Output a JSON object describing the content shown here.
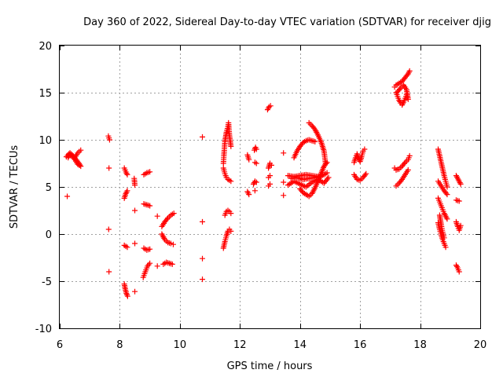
{
  "chart_data": {
    "type": "scatter",
    "title": "Day 360 of 2022, Sidereal Day-to-day VTEC variation (SDTVAR) for receiver djig",
    "xlabel": "GPS time / hours",
    "ylabel": "SDTVAR / TECUs",
    "xlim": [
      6,
      20
    ],
    "ylim": [
      -10,
      20
    ],
    "xticks": [
      "6",
      "8",
      "10",
      "12",
      "14",
      "16",
      "18",
      "20"
    ],
    "yticks": [
      "-10",
      "-5",
      "0",
      "5",
      "10",
      "15",
      "20"
    ],
    "grid": true,
    "legend": "none",
    "marker": "plus",
    "color": "#ff0000",
    "segments": [
      {
        "x": [
          6.22,
          6.3,
          6.4,
          6.5,
          6.6,
          6.7,
          6.62,
          6.52,
          6.42,
          6.34,
          6.28
        ],
        "y": [
          8.2,
          8.5,
          8.3,
          7.9,
          7.4,
          7.2,
          7.6,
          8.0,
          8.4,
          8.6,
          8.1
        ]
      },
      {
        "x": [
          6.5,
          6.6,
          6.7
        ],
        "y": [
          8.1,
          8.6,
          8.9
        ]
      },
      {
        "x": [
          6.25
        ],
        "y": [
          4.0
        ]
      },
      {
        "x": [
          7.62,
          7.66
        ],
        "y": [
          10.4,
          10.0
        ]
      },
      {
        "x": [
          7.64
        ],
        "y": [
          7.0
        ]
      },
      {
        "x": [
          7.63
        ],
        "y": [
          0.5
        ]
      },
      {
        "x": [
          7.64
        ],
        "y": [
          -4.0
        ]
      },
      {
        "x": [
          8.15,
          8.2,
          8.25
        ],
        "y": [
          7.0,
          6.6,
          6.3
        ]
      },
      {
        "x": [
          8.15,
          8.2,
          8.25
        ],
        "y": [
          3.8,
          4.3,
          4.6
        ]
      },
      {
        "x": [
          8.15,
          8.25
        ],
        "y": [
          -1.2,
          -1.4
        ]
      },
      {
        "x": [
          8.15,
          8.18,
          8.22,
          8.26
        ],
        "y": [
          -5.3,
          -5.8,
          -6.3,
          -6.6
        ]
      },
      {
        "x": [
          8.48,
          8.5
        ],
        "y": [
          5.9,
          5.2
        ]
      },
      {
        "x": [
          8.5
        ],
        "y": [
          2.5
        ]
      },
      {
        "x": [
          8.5
        ],
        "y": [
          -1.0
        ]
      },
      {
        "x": [
          8.5
        ],
        "y": [
          -6.1
        ]
      },
      {
        "x": [
          8.8,
          8.9,
          9.0
        ],
        "y": [
          6.3,
          6.5,
          6.6
        ]
      },
      {
        "x": [
          8.8,
          8.9,
          9.0
        ],
        "y": [
          3.2,
          3.1,
          3.0
        ]
      },
      {
        "x": [
          8.8,
          8.9,
          9.0
        ],
        "y": [
          -1.5,
          -1.7,
          -1.6
        ]
      },
      {
        "x": [
          8.78,
          8.85,
          8.92,
          9.0
        ],
        "y": [
          -4.6,
          -4.0,
          -3.4,
          -3.1
        ]
      },
      {
        "x": [
          9.25
        ],
        "y": [
          1.9
        ]
      },
      {
        "x": [
          9.25
        ],
        "y": [
          -3.4
        ]
      },
      {
        "x": [
          9.4,
          9.5,
          9.6,
          9.7,
          9.8
        ],
        "y": [
          0.8,
          1.3,
          1.7,
          2.0,
          2.2
        ]
      },
      {
        "x": [
          9.4,
          9.5,
          9.6,
          9.7,
          9.78
        ],
        "y": [
          0.0,
          -0.6,
          -0.9,
          -1.0,
          -1.1
        ]
      },
      {
        "x": [
          9.45,
          9.55,
          9.65,
          9.75
        ],
        "y": [
          -3.2,
          -3.0,
          -3.1,
          -3.2
        ]
      },
      {
        "x": [
          10.75
        ],
        "y": [
          10.3
        ]
      },
      {
        "x": [
          10.75
        ],
        "y": [
          1.3
        ]
      },
      {
        "x": [
          10.75
        ],
        "y": [
          -2.6
        ]
      },
      {
        "x": [
          10.75
        ],
        "y": [
          -4.8
        ]
      },
      {
        "x": [
          11.45,
          11.47,
          11.5,
          11.55,
          11.6,
          11.62,
          11.65,
          11.7
        ],
        "y": [
          7.5,
          8.5,
          9.8,
          10.8,
          11.4,
          11.8,
          10.5,
          9.3
        ]
      },
      {
        "x": [
          11.45,
          11.5,
          11.55,
          11.6,
          11.65,
          11.7
        ],
        "y": [
          7.0,
          6.4,
          6.0,
          5.8,
          5.7,
          5.6
        ]
      },
      {
        "x": [
          11.5,
          11.55,
          11.6,
          11.65,
          11.7
        ],
        "y": [
          2.0,
          2.4,
          2.5,
          2.4,
          2.2
        ]
      },
      {
        "x": [
          11.45,
          11.5,
          11.55,
          11.6,
          11.65,
          11.7
        ],
        "y": [
          -1.5,
          -0.8,
          -0.2,
          0.3,
          0.5,
          0.3
        ]
      },
      {
        "x": [
          12.25,
          12.3
        ],
        "y": [
          8.4,
          7.9
        ]
      },
      {
        "x": [
          12.25,
          12.3
        ],
        "y": [
          4.5,
          4.2
        ]
      },
      {
        "x": [
          12.48,
          12.52,
          12.55
        ],
        "y": [
          8.9,
          9.2,
          9.0
        ]
      },
      {
        "x": [
          12.5,
          12.55
        ],
        "y": [
          7.6,
          7.5
        ]
      },
      {
        "x": [
          12.45,
          12.5,
          12.55
        ],
        "y": [
          5.3,
          5.6,
          5.5
        ]
      },
      {
        "x": [
          12.5
        ],
        "y": [
          4.6
        ]
      },
      {
        "x": [
          12.92,
          12.97,
          13.02
        ],
        "y": [
          13.2,
          13.5,
          13.6
        ]
      },
      {
        "x": [
          12.95,
          13.0,
          13.05
        ],
        "y": [
          7.0,
          7.5,
          7.3
        ]
      },
      {
        "x": [
          12.95,
          13.0
        ],
        "y": [
          6.0,
          6.2
        ]
      },
      {
        "x": [
          12.95,
          13.0
        ],
        "y": [
          5.1,
          5.3
        ]
      },
      {
        "x": [
          13.45
        ],
        "y": [
          8.6
        ]
      },
      {
        "x": [
          13.45
        ],
        "y": [
          4.1
        ]
      },
      {
        "x": [
          13.45
        ],
        "y": [
          5.5
        ]
      },
      {
        "x": [
          13.8,
          13.9,
          14.0,
          14.1,
          14.2,
          14.3,
          14.4,
          14.5
        ],
        "y": [
          8.1,
          8.8,
          9.3,
          9.7,
          9.9,
          10.0,
          9.9,
          9.8
        ]
      },
      {
        "x": [
          14.3,
          14.4,
          14.5,
          14.6,
          14.7,
          14.8,
          14.85
        ],
        "y": [
          11.8,
          11.5,
          11.1,
          10.5,
          9.8,
          8.8,
          7.5
        ]
      },
      {
        "x": [
          13.6,
          13.8,
          14.0,
          14.2,
          14.4,
          14.6,
          14.8,
          14.9
        ],
        "y": [
          6.2,
          6.1,
          6.2,
          6.3,
          6.2,
          6.1,
          6.3,
          6.5
        ]
      },
      {
        "x": [
          13.6,
          13.8,
          14.0,
          14.2,
          14.4,
          14.6,
          14.8,
          14.95
        ],
        "y": [
          5.2,
          5.6,
          5.3,
          5.0,
          5.5,
          5.8,
          5.4,
          6.0
        ]
      },
      {
        "x": [
          14.0,
          14.1,
          14.2,
          14.3,
          14.4,
          14.5,
          14.6,
          14.7,
          14.8,
          14.9
        ],
        "y": [
          4.8,
          4.4,
          4.2,
          4.0,
          4.3,
          4.9,
          5.6,
          6.4,
          7.2,
          7.6
        ]
      },
      {
        "x": [
          13.7,
          13.9,
          14.1,
          14.3,
          14.5,
          14.7
        ],
        "y": [
          5.9,
          6.0,
          5.8,
          5.9,
          6.0,
          6.1
        ]
      },
      {
        "x": [
          15.8,
          15.85,
          15.9,
          15.95,
          16.0,
          16.05,
          16.1,
          16.15
        ],
        "y": [
          7.6,
          8.1,
          8.5,
          8.0,
          7.7,
          8.2,
          8.8,
          9.0
        ]
      },
      {
        "x": [
          15.8,
          15.9,
          16.0,
          16.1,
          16.2
        ],
        "y": [
          6.3,
          5.8,
          5.7,
          6.0,
          6.4
        ]
      },
      {
        "x": [
          17.15,
          17.2,
          17.25,
          17.3,
          17.4,
          17.5,
          17.6,
          17.65
        ],
        "y": [
          15.6,
          15.8,
          15.9,
          16.0,
          16.2,
          16.6,
          17.0,
          17.3
        ]
      },
      {
        "x": [
          17.2,
          17.25,
          17.3,
          17.35,
          17.4,
          17.45,
          17.5,
          17.55,
          17.6,
          17.55,
          17.45,
          17.35,
          17.25
        ],
        "y": [
          15.0,
          14.6,
          14.2,
          13.9,
          13.7,
          14.0,
          14.4,
          14.8,
          14.3,
          15.3,
          15.8,
          15.5,
          15.1
        ]
      },
      {
        "x": [
          17.15,
          17.2,
          17.3,
          17.4,
          17.5,
          17.6,
          17.65
        ],
        "y": [
          7.0,
          6.8,
          6.9,
          7.2,
          7.6,
          7.9,
          8.3
        ]
      },
      {
        "x": [
          17.2,
          17.3,
          17.4,
          17.5,
          17.6
        ],
        "y": [
          5.1,
          5.4,
          5.8,
          6.3,
          6.8
        ]
      },
      {
        "x": [
          18.6,
          18.65,
          18.7,
          18.75,
          18.8,
          18.85,
          18.9
        ],
        "y": [
          9.0,
          8.3,
          7.6,
          6.9,
          6.2,
          5.6,
          5.0
        ]
      },
      {
        "x": [
          18.6,
          18.7,
          18.8,
          18.9
        ],
        "y": [
          5.6,
          5.1,
          4.6,
          4.2
        ]
      },
      {
        "x": [
          18.6,
          18.65,
          18.7,
          18.75,
          18.8,
          18.85,
          18.9
        ],
        "y": [
          3.8,
          3.4,
          3.0,
          2.6,
          2.2,
          1.9,
          1.6
        ]
      },
      {
        "x": [
          18.6,
          18.65,
          18.7,
          18.75,
          18.8,
          18.85
        ],
        "y": [
          1.2,
          0.5,
          -0.1,
          -0.6,
          -1.0,
          -1.4
        ]
      },
      {
        "x": [
          18.65,
          18.7,
          18.75,
          18.8
        ],
        "y": [
          2.0,
          1.0,
          0.2,
          -0.4
        ]
      },
      {
        "x": [
          19.2,
          19.25,
          19.3,
          19.35
        ],
        "y": [
          6.2,
          5.9,
          5.6,
          5.3
        ]
      },
      {
        "x": [
          19.2,
          19.3
        ],
        "y": [
          3.6,
          3.5
        ]
      },
      {
        "x": [
          19.2,
          19.25,
          19.3,
          19.35
        ],
        "y": [
          1.3,
          0.8,
          0.4,
          0.9
        ]
      },
      {
        "x": [
          19.2,
          19.25,
          19.3
        ],
        "y": [
          -3.3,
          -3.6,
          -4.0
        ]
      }
    ]
  }
}
